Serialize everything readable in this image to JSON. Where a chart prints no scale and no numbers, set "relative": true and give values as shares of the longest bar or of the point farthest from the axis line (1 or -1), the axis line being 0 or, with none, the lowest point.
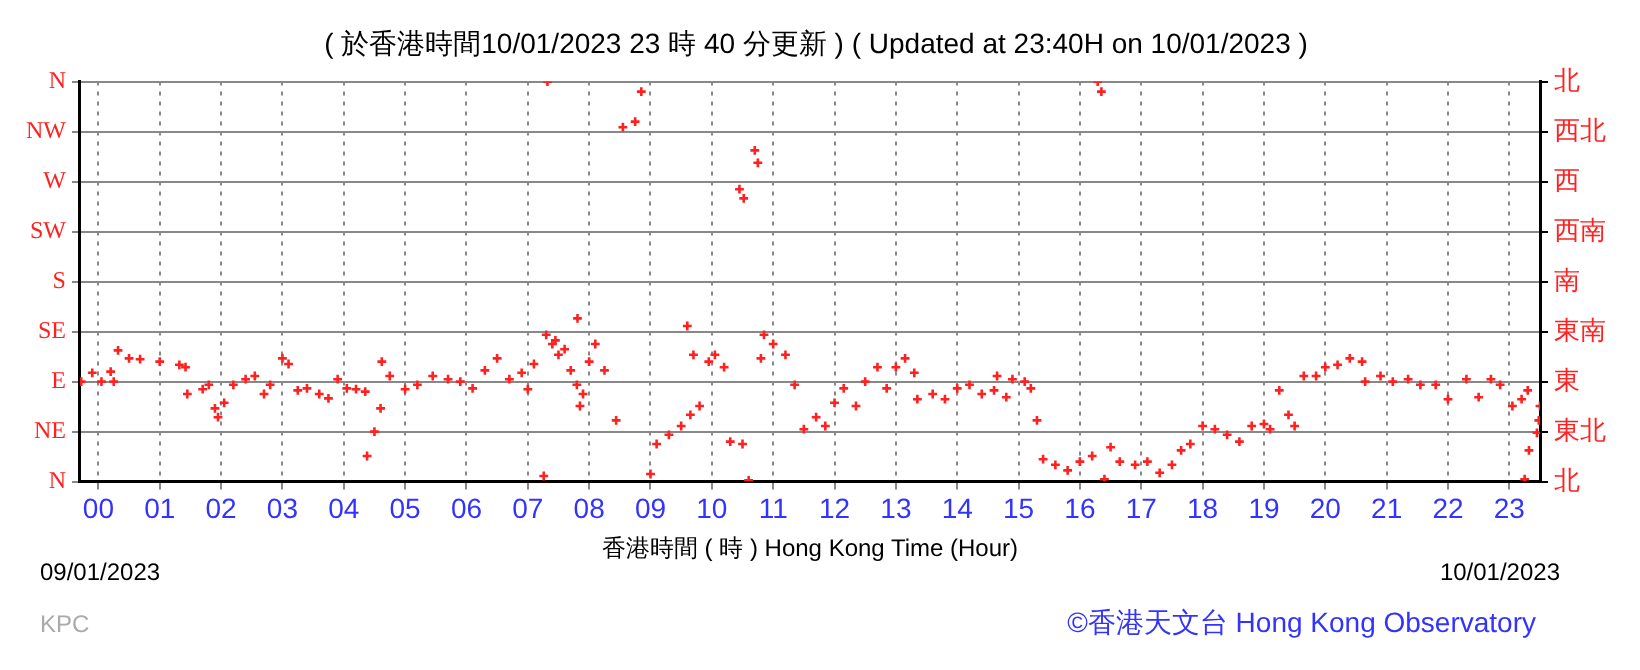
{
  "chart_data": {
    "type": "scatter",
    "title": "( 於香港時間10/01/2023 23 時 40 分更新 ) ( Updated at 23:40H on 10/01/2023 )",
    "xlabel": "香港時間 ( 時 ) Hong Kong Time (Hour)",
    "annotations": [
      "09/01/2023",
      "10/01/2023",
      "KPC",
      "©香港天文台 Hong Kong Observatory",
      "N",
      "NE",
      "E",
      "SE",
      "S",
      "SW",
      "W",
      "NW",
      "N",
      "北",
      "東北",
      "東",
      "東南",
      "南",
      "西南",
      "西",
      "西北",
      "北"
    ],
    "relative": true,
    "xlim": [
      -0.3,
      23.5
    ],
    "xticks": [
      {
        "value": 0,
        "label": "00"
      },
      {
        "value": 1,
        "label": "01"
      },
      {
        "value": 2,
        "label": "02"
      },
      {
        "value": 3,
        "label": "03"
      },
      {
        "value": 4,
        "label": "04"
      },
      {
        "value": 5,
        "label": "05"
      },
      {
        "value": 6,
        "label": "06"
      },
      {
        "value": 7,
        "label": "07"
      },
      {
        "value": 8,
        "label": "08"
      },
      {
        "value": 9,
        "label": "09"
      },
      {
        "value": 10,
        "label": "10"
      },
      {
        "value": 11,
        "label": "11"
      },
      {
        "value": 12,
        "label": "12"
      },
      {
        "value": 13,
        "label": "13"
      },
      {
        "value": 14,
        "label": "14"
      },
      {
        "value": 15,
        "label": "15"
      },
      {
        "value": 16,
        "label": "16"
      },
      {
        "value": 17,
        "label": "17"
      },
      {
        "value": 18,
        "label": "18"
      },
      {
        "value": 19,
        "label": "19"
      },
      {
        "value": 20,
        "label": "20"
      },
      {
        "value": 21,
        "label": "21"
      },
      {
        "value": 22,
        "label": "22"
      },
      {
        "value": 23,
        "label": "23"
      }
    ],
    "grid": true,
    "marker": "cross",
    "series": [
      {
        "color": "#ff2020",
        "x": [
          -0.28,
          -0.1,
          0.05,
          0.2,
          0.25,
          0.32,
          0.5,
          0.68,
          1.0,
          1.32,
          1.42,
          1.45,
          1.7,
          1.8,
          1.9,
          1.95,
          2.05,
          2.2,
          2.4,
          2.55,
          2.7,
          2.8,
          3.0,
          3.1,
          3.25,
          3.4,
          3.6,
          3.75,
          3.9,
          4.05,
          4.2,
          4.35,
          4.38,
          4.5,
          4.6,
          4.62,
          4.75,
          5.0,
          5.2,
          5.45,
          5.7,
          5.9,
          6.1,
          6.3,
          6.5,
          6.7,
          6.9,
          7.0,
          7.1,
          7.26,
          7.3,
          7.32,
          7.4,
          7.45,
          7.5,
          7.6,
          7.7,
          7.8,
          7.81,
          7.85,
          7.9,
          8.0,
          8.1,
          8.25,
          8.44,
          8.55,
          8.75,
          8.85,
          9.0,
          9.1,
          9.3,
          9.5,
          9.65,
          9.6,
          9.7,
          9.8,
          9.95,
          10.05,
          10.2,
          10.3,
          10.5,
          10.45,
          10.52,
          10.6,
          10.7,
          10.75,
          10.8,
          10.85,
          11.0,
          11.2,
          11.35,
          11.5,
          11.7,
          11.85,
          12.0,
          12.15,
          12.35,
          12.5,
          12.7,
          12.85,
          13.0,
          13.15,
          13.3,
          13.35,
          13.6,
          13.8,
          14.0,
          14.2,
          14.4,
          14.6,
          14.65,
          14.8,
          14.9,
          15.1,
          15.2,
          15.3,
          15.4,
          15.6,
          15.8,
          16.0,
          16.2,
          16.29,
          16.35,
          16.4,
          16.5,
          16.65,
          16.9,
          17.1,
          17.3,
          17.5,
          17.65,
          17.8,
          18.0,
          18.2,
          18.4,
          18.6,
          18.8,
          19.0,
          19.1,
          19.25,
          19.4,
          19.5,
          19.65,
          19.85,
          20.0,
          20.2,
          20.4,
          20.6,
          20.65,
          20.9,
          21.1,
          21.35,
          21.55,
          21.8,
          22.0,
          22.3,
          22.5,
          22.7,
          22.85,
          23.05,
          23.2,
          23.3,
          23.25,
          23.32,
          23.45,
          23.48,
          23.5
        ],
        "values": [
          0.25,
          0.272,
          0.25,
          0.275,
          0.25,
          0.328,
          0.308,
          0.306,
          0.3,
          0.292,
          0.286,
          0.219,
          0.231,
          0.242,
          0.183,
          0.161,
          0.197,
          0.242,
          0.256,
          0.264,
          0.219,
          0.242,
          0.308,
          0.294,
          0.228,
          0.233,
          0.219,
          0.208,
          0.256,
          0.233,
          0.231,
          0.225,
          0.064,
          0.125,
          0.183,
          0.3,
          0.264,
          0.231,
          0.242,
          0.264,
          0.256,
          0.25,
          0.233,
          0.278,
          0.308,
          0.256,
          0.272,
          0.231,
          0.294,
          0.014,
          0.367,
          1,
          0.344,
          0.353,
          0.317,
          0.331,
          0.278,
          0.242,
          0.408,
          0.189,
          0.219,
          0.3,
          0.344,
          0.278,
          0.153,
          0.886,
          0.9,
          0.975,
          0.019,
          0.094,
          0.117,
          0.139,
          0.167,
          0.389,
          0.317,
          0.189,
          0.3,
          0.317,
          0.286,
          0.1,
          0.094,
          0.731,
          0.708,
          0.003,
          0.828,
          0.797,
          0.308,
          0.367,
          0.344,
          0.317,
          0.242,
          0.131,
          0.161,
          0.139,
          0.197,
          0.233,
          0.189,
          0.25,
          0.286,
          0.233,
          0.286,
          0.308,
          0.272,
          0.206,
          0.219,
          0.206,
          0.233,
          0.242,
          0.219,
          0.228,
          0.264,
          0.211,
          0.256,
          0.25,
          0.233,
          0.153,
          0.056,
          0.042,
          0.028,
          0.05,
          0.064,
          1,
          0.975,
          0.006,
          0.086,
          0.05,
          0.042,
          0.05,
          0.022,
          0.042,
          0.078,
          0.094,
          0.139,
          0.131,
          0.117,
          0.1,
          0.139,
          0.144,
          0.131,
          0.228,
          0.167,
          0.139,
          0.264,
          0.264,
          0.286,
          0.292,
          0.308,
          0.3,
          0.25,
          0.264,
          0.25,
          0.256,
          0.242,
          0.242,
          0.206,
          0.256,
          0.211,
          0.256,
          0.242,
          0.189,
          0.206,
          0.228,
          0.006,
          0.078,
          0.122,
          0.153,
          0.189
        ]
      }
    ]
  }
}
